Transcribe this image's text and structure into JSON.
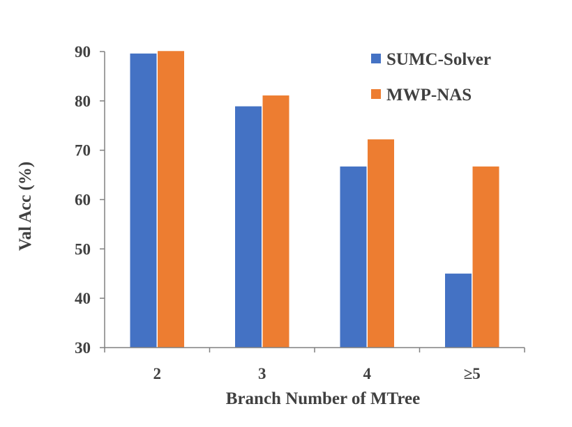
{
  "chart_data": {
    "type": "bar",
    "title": "",
    "xlabel": "Branch Number of MTree",
    "ylabel": "Val Acc (%)",
    "categories": [
      "2",
      "3",
      "4",
      "≥5"
    ],
    "ylim": [
      30,
      90
    ],
    "yticks": [
      "30",
      "40",
      "50",
      "60",
      "70",
      "80",
      "90"
    ],
    "grid": false,
    "legend_position": "top-right",
    "series": [
      {
        "name": "SUMC-Solver",
        "color": "#4472C4",
        "values": [
          89.6,
          78.9,
          66.7,
          45.0
        ]
      },
      {
        "name": "MWP-NAS",
        "color": "#ED7D31",
        "values": [
          90.1,
          81.1,
          72.2,
          66.7
        ]
      }
    ]
  }
}
